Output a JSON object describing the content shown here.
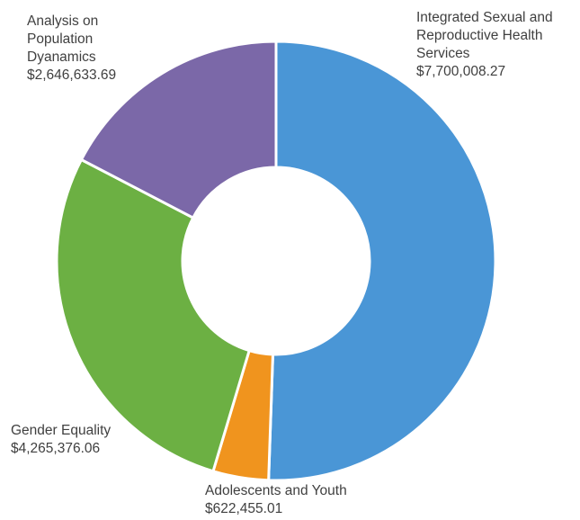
{
  "chart_data": {
    "type": "pie",
    "variant": "donut",
    "title": "",
    "legend": "none",
    "slices": [
      {
        "name": "Integrated Sexual and\nReproductive Health\nServices",
        "value": 7700008.27,
        "value_label": "$7,700,008.27",
        "color": "#4a96d6"
      },
      {
        "name": "Adolescents and Youth",
        "value": 622455.01,
        "value_label": "$622,455.01",
        "color": "#f0941e"
      },
      {
        "name": "Gender Equality",
        "value": 4265376.06,
        "value_label": "$4,265,376.06",
        "color": "#6cb043"
      },
      {
        "name": "Analysis on\nPopulation\nDyanamics",
        "value": 2646633.69,
        "value_label": "$2,646,633.69",
        "color": "#7b68a8"
      }
    ]
  }
}
